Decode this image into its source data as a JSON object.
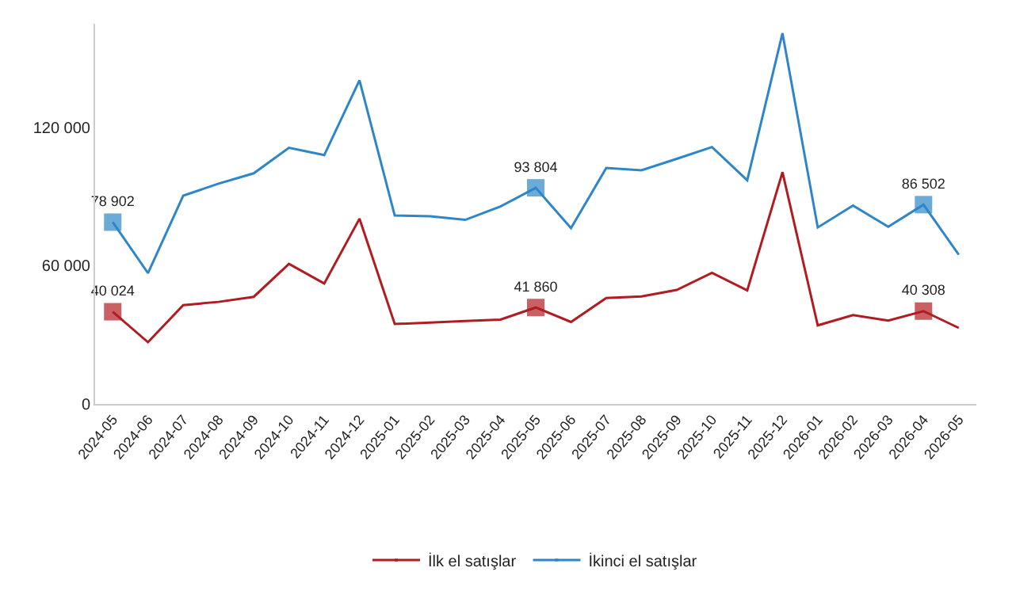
{
  "chart_data": {
    "type": "line",
    "categories": [
      "2024-05",
      "2024-06",
      "2024-07",
      "2024-08",
      "2024-09",
      "2024-10",
      "2024-11",
      "2024-12",
      "2025-01",
      "2025-02",
      "2025-03",
      "2025-04",
      "2025-05",
      "2025-06",
      "2025-07",
      "2025-08",
      "2025-09",
      "2025-10",
      "2025-11",
      "2025-12",
      "2026-01",
      "2026-02",
      "2026-03",
      "2026-04",
      "2026-05"
    ],
    "series": [
      {
        "name": "İlk el satışlar",
        "color": "#b01c22",
        "values": [
          40024,
          26800,
          42900,
          44300,
          46500,
          60800,
          52300,
          80400,
          34700,
          35300,
          36000,
          36600,
          41860,
          35600,
          46000,
          46700,
          49500,
          56900,
          49300,
          100600,
          34100,
          38600,
          36200,
          40308,
          33000
        ],
        "value_labels": [
          "40 024",
          null,
          null,
          null,
          null,
          null,
          null,
          null,
          null,
          null,
          null,
          null,
          "41 860",
          null,
          null,
          null,
          null,
          null,
          null,
          null,
          null,
          null,
          null,
          "40 308",
          null
        ]
      },
      {
        "name": "İkinci el satışlar",
        "color": "#2e86c8",
        "values": [
          78902,
          56800,
          90400,
          95600,
          100100,
          111200,
          108000,
          140500,
          81800,
          81500,
          79900,
          85700,
          93804,
          76300,
          102400,
          101400,
          106400,
          111500,
          97100,
          160900,
          76600,
          86100,
          76900,
          86502,
          64800
        ],
        "value_labels": [
          "78 902",
          null,
          null,
          null,
          null,
          null,
          null,
          null,
          null,
          null,
          null,
          null,
          "93 804",
          null,
          null,
          null,
          null,
          null,
          null,
          null,
          null,
          null,
          null,
          "86 502",
          null
        ]
      }
    ],
    "ylim": [
      0,
      165000
    ],
    "yticks": [
      0,
      {
        "value": 60000,
        "label": "60 000"
      },
      {
        "value": 120000,
        "label": "120 000"
      }
    ],
    "legend": "bottom",
    "line_style": "solid"
  }
}
